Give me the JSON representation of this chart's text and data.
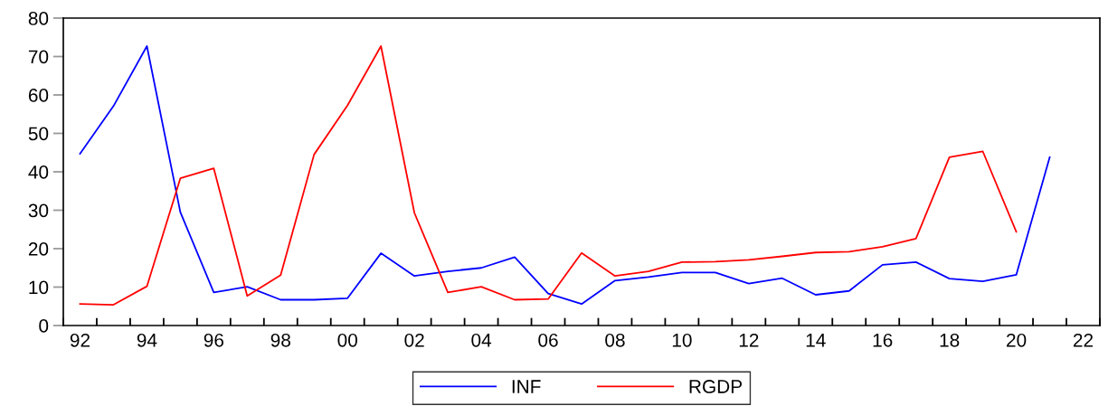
{
  "chart_data": {
    "type": "line",
    "x": [
      1992,
      1993,
      1994,
      1995,
      1996,
      1997,
      1998,
      1999,
      2000,
      2001,
      2002,
      2003,
      2004,
      2005,
      2006,
      2007,
      2008,
      2009,
      2010,
      2011,
      2012,
      2013,
      2014,
      2015,
      2016,
      2017,
      2018,
      2019,
      2020,
      2021
    ],
    "series": [
      {
        "name": "INF",
        "color": "#0000ff",
        "values": [
          44.7,
          57.1,
          72.7,
          29.5,
          8.6,
          10.1,
          6.7,
          6.7,
          7.1,
          18.8,
          12.9,
          14.1,
          15.0,
          17.8,
          8.3,
          5.6,
          11.7,
          12.6,
          13.8,
          13.8,
          10.9,
          12.3,
          8.0,
          9.0,
          15.8,
          16.5,
          12.2,
          11.5,
          13.2,
          43.8
        ]
      },
      {
        "name": "RGDP",
        "color": "#ff0000",
        "values": [
          5.6,
          5.4,
          10.2,
          38.3,
          40.9,
          7.7,
          13.1,
          44.5,
          57.3,
          72.7,
          29.3,
          8.6,
          10.1,
          6.7,
          6.9,
          18.9,
          12.9,
          14.1,
          16.5,
          16.6,
          17.1,
          18.0,
          19.0,
          19.2,
          20.5,
          22.6,
          43.8,
          45.3,
          24.4,
          null
        ]
      }
    ],
    "xlim": [
      1991.5,
      2022.5
    ],
    "xticks": [
      {
        "value": 1991.5,
        "label": null
      },
      {
        "value": 1992,
        "label": "92"
      },
      {
        "value": 1992.5,
        "label": null
      },
      {
        "value": 1993.5,
        "label": null
      },
      {
        "value": 1994,
        "label": "94"
      },
      {
        "value": 1994.5,
        "label": null
      },
      {
        "value": 1995.5,
        "label": null
      },
      {
        "value": 1996,
        "label": "96"
      },
      {
        "value": 1996.5,
        "label": null
      },
      {
        "value": 1997.5,
        "label": null
      },
      {
        "value": 1998,
        "label": "98"
      },
      {
        "value": 1998.5,
        "label": null
      },
      {
        "value": 1999.5,
        "label": null
      },
      {
        "value": 2000,
        "label": "00"
      },
      {
        "value": 2000.5,
        "label": null
      },
      {
        "value": 2001.5,
        "label": null
      },
      {
        "value": 2002,
        "label": "02"
      },
      {
        "value": 2002.5,
        "label": null
      },
      {
        "value": 2003.5,
        "label": null
      },
      {
        "value": 2004,
        "label": "04"
      },
      {
        "value": 2004.5,
        "label": null
      },
      {
        "value": 2005.5,
        "label": null
      },
      {
        "value": 2006,
        "label": "06"
      },
      {
        "value": 2006.5,
        "label": null
      },
      {
        "value": 2007.5,
        "label": null
      },
      {
        "value": 2008,
        "label": "08"
      },
      {
        "value": 2008.5,
        "label": null
      },
      {
        "value": 2009.5,
        "label": null
      },
      {
        "value": 2010,
        "label": "10"
      },
      {
        "value": 2010.5,
        "label": null
      },
      {
        "value": 2011.5,
        "label": null
      },
      {
        "value": 2012,
        "label": "12"
      },
      {
        "value": 2012.5,
        "label": null
      },
      {
        "value": 2013.5,
        "label": null
      },
      {
        "value": 2014,
        "label": "14"
      },
      {
        "value": 2014.5,
        "label": null
      },
      {
        "value": 2015.5,
        "label": null
      },
      {
        "value": 2016,
        "label": "16"
      },
      {
        "value": 2016.5,
        "label": null
      },
      {
        "value": 2017.5,
        "label": null
      },
      {
        "value": 2018,
        "label": "18"
      },
      {
        "value": 2018.5,
        "label": null
      },
      {
        "value": 2019.5,
        "label": null
      },
      {
        "value": 2020,
        "label": "20"
      },
      {
        "value": 2020.5,
        "label": null
      },
      {
        "value": 2021.5,
        "label": null
      },
      {
        "value": 2022,
        "label": "22"
      },
      {
        "value": 2022.5,
        "label": null
      }
    ],
    "ylim": [
      0,
      80
    ],
    "yticks": [
      0,
      10,
      20,
      30,
      40,
      50,
      60,
      70,
      80
    ],
    "grid": false,
    "legend": "bottom",
    "marker": "none",
    "line_style": "solid"
  }
}
